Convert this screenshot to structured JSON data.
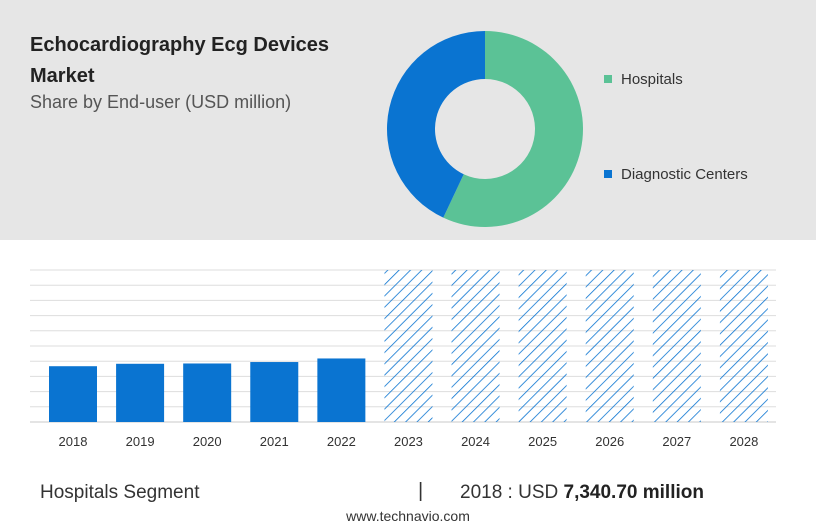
{
  "header": {
    "title": "Echocardiography Ecg Devices Market",
    "subtitle": "Share by End-user (USD million)"
  },
  "colors": {
    "hospitals": "#5bc296",
    "diagnostic_centers": "#0a74d1",
    "bar": "#0a74d1",
    "forecast_hatch": "#0a74d1",
    "panel": "#e6e6e6"
  },
  "chart_data": [
    {
      "type": "pie",
      "style": "donut",
      "labels": [
        "Hospitals",
        "Diagnostic Centers"
      ],
      "values": [
        57,
        43
      ],
      "legend_position": "right"
    },
    {
      "type": "bar",
      "categories": [
        "2018",
        "2019",
        "2020",
        "2021",
        "2022",
        "2023",
        "2024",
        "2025",
        "2026",
        "2027",
        "2028"
      ],
      "values": [
        7340.7,
        7660,
        7700,
        7890,
        8360,
        null,
        null,
        null,
        null,
        null,
        null
      ],
      "forecast_categories": [
        "2023",
        "2024",
        "2025",
        "2026",
        "2027",
        "2028"
      ],
      "ylim": [
        0,
        20000
      ],
      "y_axis_labels_shown": false,
      "grid": true
    }
  ],
  "footer": {
    "segment": "Hospitals Segment",
    "separator": "|",
    "year_prefix": "2018 : USD",
    "value": "7,340.70 million",
    "source": "www.technavio.com"
  }
}
